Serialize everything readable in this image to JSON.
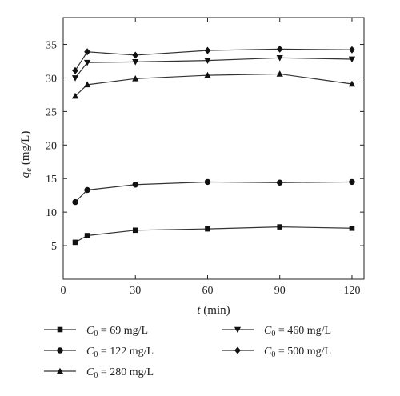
{
  "chart_data": {
    "type": "line",
    "xlabel_var": "t",
    "xlabel_unit": " (min)",
    "ylabel_var": "q",
    "ylabel_sub": "e",
    "ylabel_unit": " (mg/L)",
    "xlim": [
      0,
      125
    ],
    "ylim": [
      0,
      39
    ],
    "xticks": [
      0,
      30,
      60,
      90,
      120
    ],
    "yticks": [
      5,
      10,
      15,
      20,
      25,
      30,
      35
    ],
    "grid": false,
    "legend_position": "bottom",
    "x": [
      5,
      10,
      30,
      60,
      90,
      120
    ],
    "series": [
      {
        "name": "C0 = 69 mg/L",
        "legend_sub": "0",
        "legend_value": " = 69 mg/L",
        "marker": "square",
        "values": [
          5.5,
          6.5,
          7.3,
          7.5,
          7.8,
          7.6
        ]
      },
      {
        "name": "C0 = 122 mg/L",
        "legend_sub": "0",
        "legend_value": " = 122 mg/L",
        "marker": "circle",
        "values": [
          11.5,
          13.3,
          14.1,
          14.5,
          14.4,
          14.5
        ]
      },
      {
        "name": "C0 = 280 mg/L",
        "legend_sub": "0",
        "legend_value": " = 280 mg/L",
        "marker": "triangle-up",
        "values": [
          27.3,
          29.0,
          29.9,
          30.4,
          30.6,
          29.1
        ]
      },
      {
        "name": "C0 = 460 mg/L",
        "legend_sub": "0",
        "legend_value": " = 460 mg/L",
        "marker": "triangle-down",
        "values": [
          30.0,
          32.3,
          32.4,
          32.6,
          33.0,
          32.8
        ]
      },
      {
        "name": "C0 = 500 mg/L",
        "legend_sub": "0",
        "legend_value": " = 500 mg/L",
        "marker": "diamond",
        "values": [
          31.1,
          33.9,
          33.4,
          34.1,
          34.3,
          34.2
        ]
      }
    ],
    "colors": {
      "line": "#333333",
      "marker": "#111111",
      "axis": "#222222"
    }
  }
}
